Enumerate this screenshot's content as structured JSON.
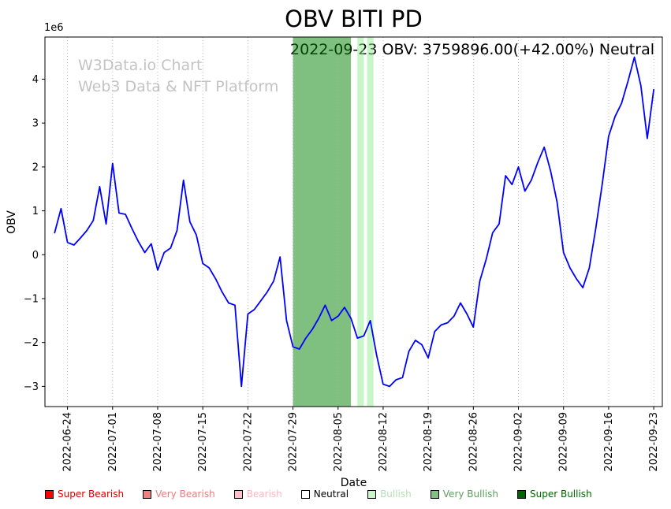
{
  "watermark": {
    "line1": "W3Data.io Chart",
    "line2": "Web3 Data & NFT Platform"
  },
  "chart_data": {
    "type": "line",
    "title": "OBV BITI PD",
    "annotation": "2022-09-23 OBV: 3759896.00(+42.00%) Neutral",
    "latest": {
      "date": "2022-09-23",
      "obv": 3759896.0,
      "change_pct": 42.0,
      "signal": "Neutral"
    },
    "xlabel": "Date",
    "ylabel": "OBV",
    "y_offset_text": "1e6",
    "grid": "vertical-dotted",
    "grid_color": "#b0b0b0",
    "x_range": [
      "2022-06-20T12:00:00",
      "2022-09-24T08:00:00"
    ],
    "ylim": [
      -3460000,
      4960000
    ],
    "x_ticks": [
      "2022-06-24",
      "2022-07-01",
      "2022-07-08",
      "2022-07-15",
      "2022-07-22",
      "2022-07-29",
      "2022-08-05",
      "2022-08-12",
      "2022-08-19",
      "2022-08-26",
      "2022-09-02",
      "2022-09-09",
      "2022-09-16",
      "2022-09-23"
    ],
    "y_ticks": [
      {
        "value": -3000000,
        "label": "−3"
      },
      {
        "value": -2000000,
        "label": "−2"
      },
      {
        "value": -1000000,
        "label": "−1"
      },
      {
        "value": 0,
        "label": "0"
      },
      {
        "value": 1000000,
        "label": "1"
      },
      {
        "value": 2000000,
        "label": "2"
      },
      {
        "value": 3000000,
        "label": "3"
      },
      {
        "value": 4000000,
        "label": "4"
      }
    ],
    "regions": [
      {
        "label": "Very Bullish",
        "start": "2022-07-29T00:00:00",
        "end": "2022-08-07T00:00:00",
        "color": "#008000",
        "opacity": 0.5
      },
      {
        "label": "Bullish",
        "start": "2022-08-08T00:00:00",
        "end": "2022-08-09T00:00:00",
        "color": "#90ee90",
        "opacity": 0.5
      },
      {
        "label": "Bullish",
        "start": "2022-08-09T12:00:00",
        "end": "2022-08-10T12:00:00",
        "color": "#90ee90",
        "opacity": 0.5
      }
    ],
    "series": [
      {
        "name": "OBV",
        "color": "#0000ff",
        "dates": [
          "2022-06-22",
          "2022-06-23",
          "2022-06-24",
          "2022-06-25",
          "2022-06-26",
          "2022-06-27",
          "2022-06-28",
          "2022-06-29",
          "2022-06-30",
          "2022-07-01",
          "2022-07-02",
          "2022-07-03",
          "2022-07-04",
          "2022-07-05",
          "2022-07-06",
          "2022-07-07",
          "2022-07-08",
          "2022-07-09",
          "2022-07-10",
          "2022-07-11",
          "2022-07-12",
          "2022-07-13",
          "2022-07-14",
          "2022-07-15",
          "2022-07-16",
          "2022-07-17",
          "2022-07-18",
          "2022-07-19",
          "2022-07-20",
          "2022-07-21",
          "2022-07-22",
          "2022-07-23",
          "2022-07-24",
          "2022-07-25",
          "2022-07-26",
          "2022-07-27",
          "2022-07-28",
          "2022-07-29",
          "2022-07-30",
          "2022-07-31",
          "2022-08-01",
          "2022-08-02",
          "2022-08-03",
          "2022-08-04",
          "2022-08-05",
          "2022-08-06",
          "2022-08-07",
          "2022-08-08",
          "2022-08-09",
          "2022-08-10",
          "2022-08-11",
          "2022-08-12",
          "2022-08-13",
          "2022-08-14",
          "2022-08-15",
          "2022-08-16",
          "2022-08-17",
          "2022-08-18",
          "2022-08-19",
          "2022-08-20",
          "2022-08-21",
          "2022-08-22",
          "2022-08-23",
          "2022-08-24",
          "2022-08-25",
          "2022-08-26",
          "2022-08-27",
          "2022-08-28",
          "2022-08-29",
          "2022-08-30",
          "2022-08-31",
          "2022-09-01",
          "2022-09-02",
          "2022-09-03",
          "2022-09-04",
          "2022-09-05",
          "2022-09-06",
          "2022-09-07",
          "2022-09-08",
          "2022-09-09",
          "2022-09-10",
          "2022-09-11",
          "2022-09-12",
          "2022-09-13",
          "2022-09-14",
          "2022-09-15",
          "2022-09-16",
          "2022-09-17",
          "2022-09-18",
          "2022-09-19",
          "2022-09-20",
          "2022-09-21",
          "2022-09-22",
          "2022-09-23"
        ],
        "values": [
          500000,
          1050000,
          280000,
          220000,
          380000,
          550000,
          780000,
          1550000,
          700000,
          2080000,
          950000,
          920000,
          600000,
          300000,
          50000,
          250000,
          -350000,
          50000,
          150000,
          550000,
          1700000,
          750000,
          450000,
          -200000,
          -300000,
          -550000,
          -850000,
          -1100000,
          -1150000,
          -3000000,
          -1350000,
          -1250000,
          -1050000,
          -850000,
          -600000,
          -50000,
          -1500000,
          -2100000,
          -2150000,
          -1900000,
          -1700000,
          -1450000,
          -1150000,
          -1500000,
          -1400000,
          -1200000,
          -1450000,
          -1900000,
          -1850000,
          -1500000,
          -2300000,
          -2950000,
          -3000000,
          -2850000,
          -2800000,
          -2200000,
          -1950000,
          -2050000,
          -2350000,
          -1750000,
          -1600000,
          -1550000,
          -1400000,
          -1100000,
          -1350000,
          -1650000,
          -600000,
          -100000,
          500000,
          700000,
          1800000,
          1600000,
          2000000,
          1450000,
          1700000,
          2100000,
          2450000,
          1900000,
          1200000,
          50000,
          -300000,
          -550000,
          -750000,
          -300000,
          600000,
          1600000,
          2700000,
          3150000,
          3450000,
          3950000,
          4500000,
          3850000,
          2650000,
          3759896
        ]
      }
    ],
    "legend": [
      {
        "label": "Super Bearish",
        "color": "#ff0000",
        "text_color": "#dd0000"
      },
      {
        "label": "Very Bearish",
        "color": "#f08080",
        "text_color": "#ef7b7b"
      },
      {
        "label": "Bearish",
        "color": "#ffc0cb",
        "text_color": "#ffb6c1"
      },
      {
        "label": "Neutral",
        "color": "#ffffff",
        "text_color": "#000000"
      },
      {
        "label": "Bullish",
        "color": "#c8f6c8",
        "text_color": "#b5e0b5"
      },
      {
        "label": "Very Bullish",
        "color": "#80c080",
        "text_color": "#5b9e5b"
      },
      {
        "label": "Super Bullish",
        "color": "#006400",
        "text_color": "#006400"
      }
    ]
  }
}
